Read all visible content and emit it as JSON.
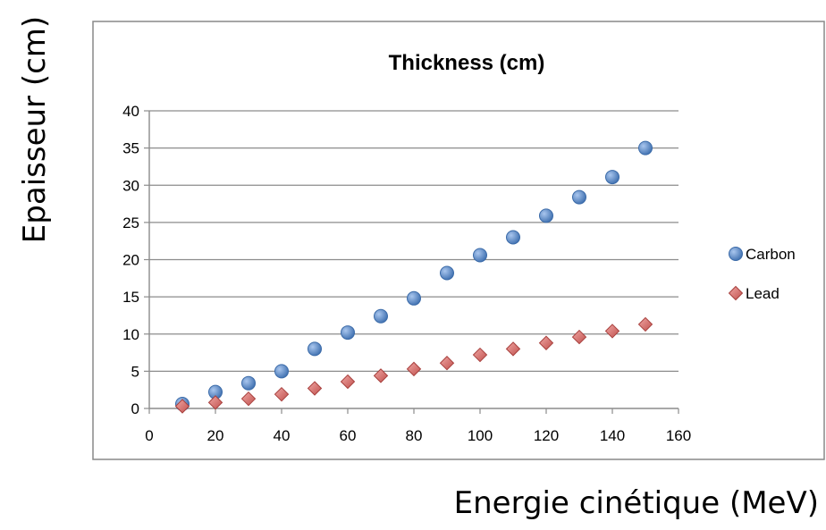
{
  "chart_data": {
    "type": "scatter",
    "title": "Thickness (cm)",
    "xlabel": "Energie cinétique (MeV)",
    "ylabel": "Epaisseur (cm)",
    "xlim": [
      0,
      160
    ],
    "ylim": [
      0,
      40
    ],
    "x_ticks": [
      0,
      20,
      40,
      60,
      80,
      100,
      120,
      140,
      160
    ],
    "y_ticks": [
      0,
      5,
      10,
      15,
      20,
      25,
      30,
      35,
      40
    ],
    "grid": "horizontal",
    "legend_position": "right",
    "series": [
      {
        "name": "Carbon",
        "marker": "circle",
        "color": "#4f81bd",
        "points": [
          [
            10,
            0.6
          ],
          [
            20,
            2.2
          ],
          [
            30,
            3.4
          ],
          [
            40,
            5.0
          ],
          [
            50,
            8.0
          ],
          [
            60,
            10.2
          ],
          [
            70,
            12.4
          ],
          [
            80,
            14.8
          ],
          [
            90,
            18.2
          ],
          [
            100,
            20.6
          ],
          [
            110,
            23.0
          ],
          [
            120,
            25.9
          ],
          [
            130,
            28.4
          ],
          [
            140,
            31.1
          ],
          [
            150,
            35.0
          ]
        ]
      },
      {
        "name": "Lead",
        "marker": "diamond",
        "color": "#c0504d",
        "points": [
          [
            10,
            0.3
          ],
          [
            20,
            0.8
          ],
          [
            30,
            1.3
          ],
          [
            40,
            1.9
          ],
          [
            50,
            2.7
          ],
          [
            60,
            3.6
          ],
          [
            70,
            4.4
          ],
          [
            80,
            5.3
          ],
          [
            90,
            6.1
          ],
          [
            100,
            7.2
          ],
          [
            110,
            8.0
          ],
          [
            120,
            8.8
          ],
          [
            130,
            9.6
          ],
          [
            140,
            10.4
          ],
          [
            150,
            11.3
          ]
        ]
      }
    ]
  }
}
